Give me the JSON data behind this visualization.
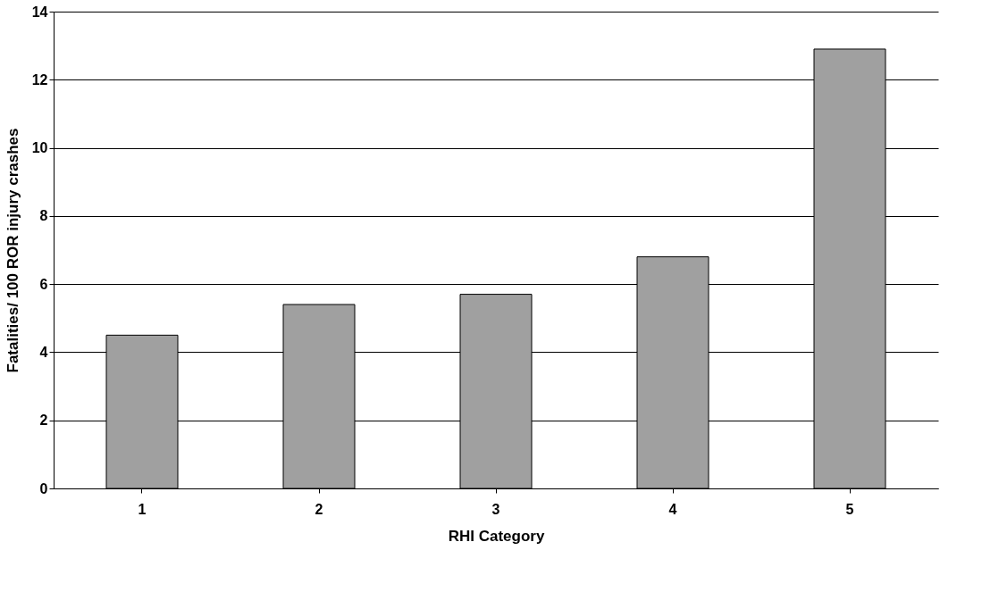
{
  "chart_data": {
    "type": "bar",
    "xlabel": "RHI Category",
    "ylabel": "Fatalities/ 100 ROR injury crashes",
    "categories": [
      "1",
      "2",
      "3",
      "4",
      "5"
    ],
    "values": [
      4.5,
      5.4,
      5.7,
      6.8,
      12.9
    ],
    "color": "#a0a0a0",
    "ylim": [
      0,
      14
    ],
    "yticks": [
      0,
      2,
      4,
      6,
      8,
      10,
      12,
      14
    ],
    "grid": "y"
  }
}
